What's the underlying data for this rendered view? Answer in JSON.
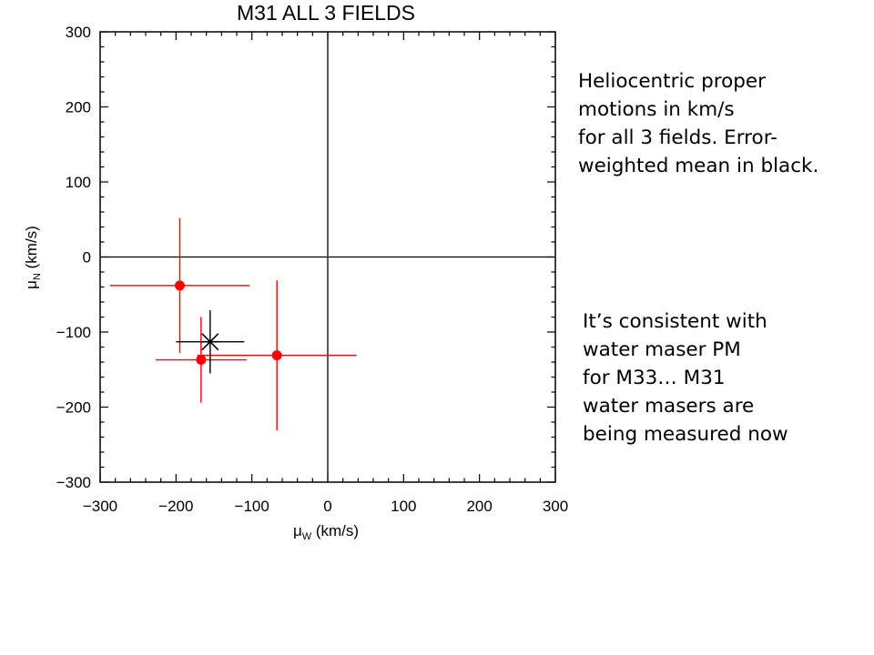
{
  "chart_data": {
    "type": "scatter",
    "title": "M31 ALL 3 FIELDS",
    "xlabel_prefix": "μ",
    "xlabel_sub": "W",
    "xlabel_suffix": " (km/s)",
    "ylabel_prefix": "μ",
    "ylabel_sub": "N",
    "ylabel_suffix": " (km/s)",
    "xlim": [
      -300,
      300
    ],
    "ylim": [
      -300,
      300
    ],
    "xticks": [
      -300,
      -200,
      -100,
      0,
      100,
      200,
      300
    ],
    "yticks": [
      -300,
      -200,
      -100,
      0,
      100,
      200,
      300
    ],
    "xtick_labels": [
      "−300",
      "−200",
      "−100",
      "0",
      "100",
      "200",
      "300"
    ],
    "ytick_labels": [
      "−300",
      "−200",
      "−100",
      "0",
      "100",
      "200",
      "300"
    ],
    "zero_lines": true,
    "series": [
      {
        "color": "#ff0000",
        "marker": "filled-circle",
        "points": [
          {
            "x": -195,
            "y": -38,
            "xerr": 92,
            "yerr": 90
          },
          {
            "x": -167,
            "y": -137,
            "xerr": 60,
            "yerr": 57
          },
          {
            "x": -67,
            "y": -131,
            "xerr": 105,
            "yerr": 100
          }
        ]
      },
      {
        "color": "#000000",
        "marker": "asterisk",
        "points": [
          {
            "x": -155,
            "y": -113,
            "xerr": 45,
            "yerr": 42
          }
        ]
      }
    ]
  },
  "notes": [
    {
      "lines": [
        "Heliocentric proper",
        "motions in km/s",
        "for all 3 fields. Error-",
        "weighted mean in black."
      ]
    },
    {
      "lines": [
        "It’s consistent with",
        "water maser PM",
        "for M33… M31",
        "water masers are",
        "being measured now"
      ]
    }
  ]
}
